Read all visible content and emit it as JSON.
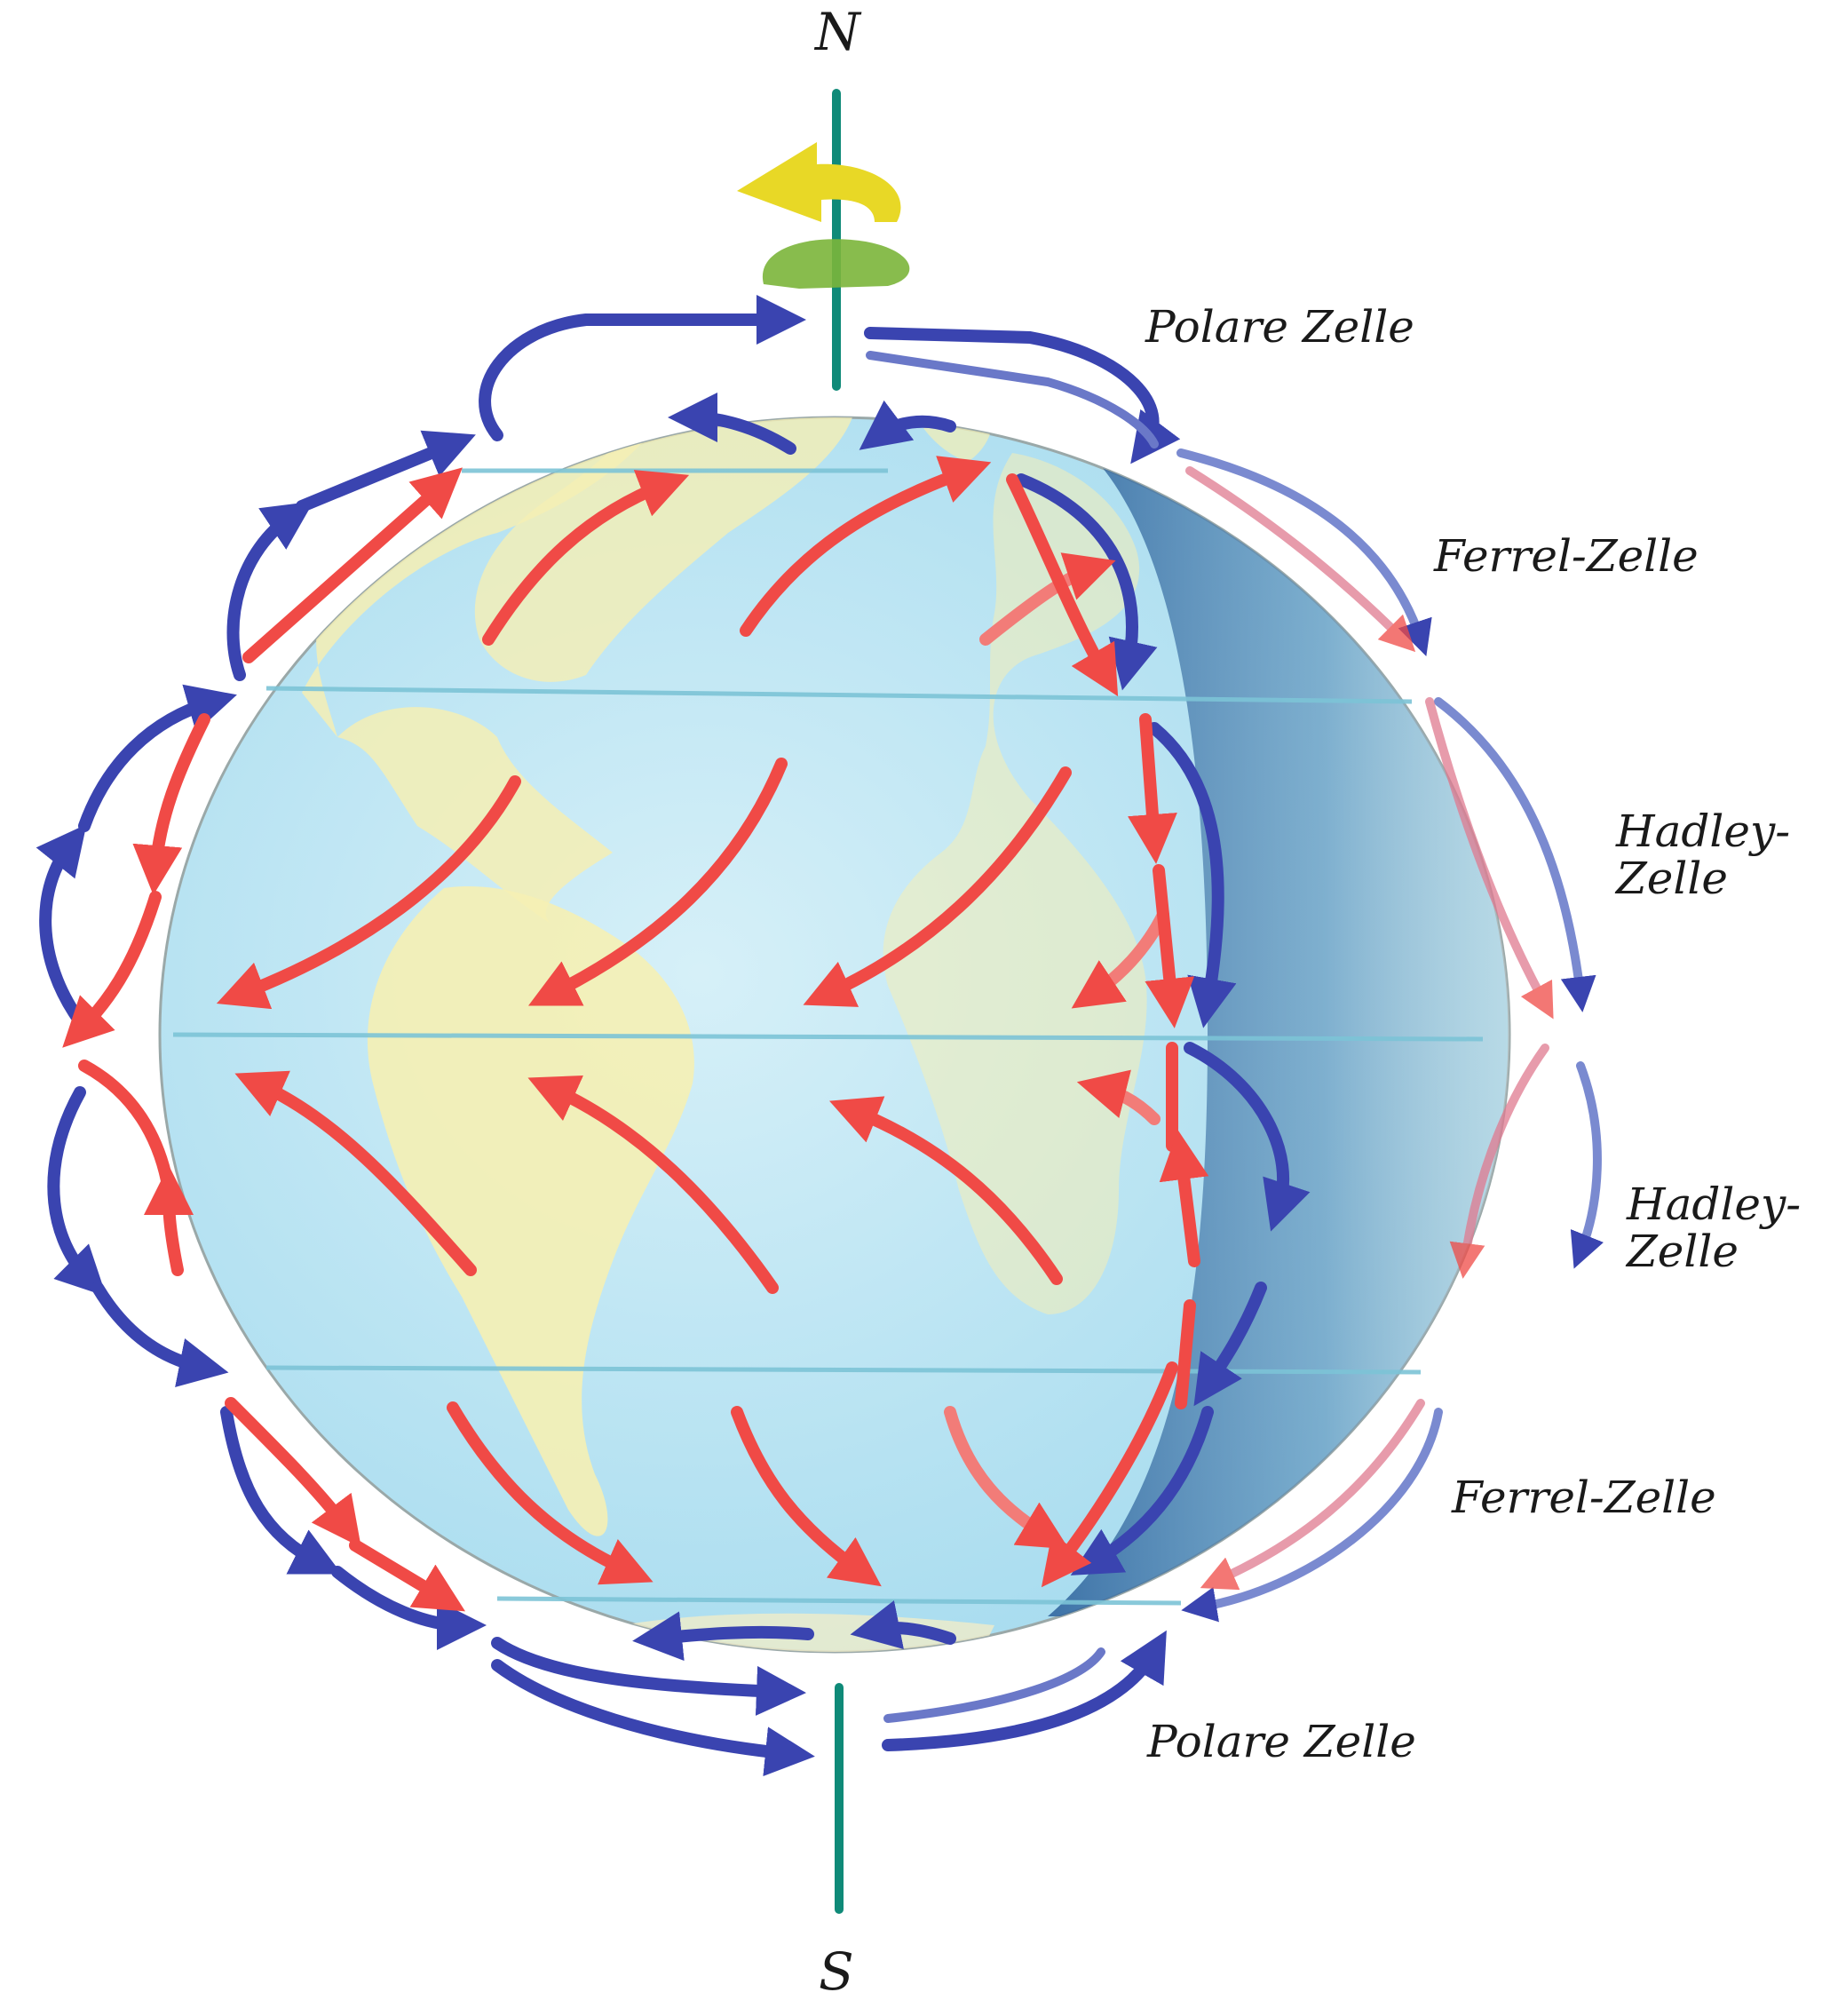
{
  "poles": {
    "north": "N",
    "south": "S"
  },
  "cells": [
    {
      "id": "polar-north",
      "label": "Polare Zelle"
    },
    {
      "id": "ferrel-north",
      "label": "Ferrel-Zelle"
    },
    {
      "id": "hadley-north",
      "line1": "Hadley-",
      "line2": "Zelle"
    },
    {
      "id": "hadley-south",
      "line1": "Hadley-",
      "line2": "Zelle"
    },
    {
      "id": "ferrel-south",
      "label": "Ferrel-Zelle"
    },
    {
      "id": "polar-south",
      "label": "Polare Zelle"
    }
  ],
  "colors": {
    "ocean": "#bfe6f3",
    "land": "#f5efb4",
    "axis": "#0f8a78",
    "rotation": "#e8d826",
    "surface_wind": "#f04a46",
    "upper_wind": "#3a44b0",
    "shadow": "#3a6aa8"
  }
}
